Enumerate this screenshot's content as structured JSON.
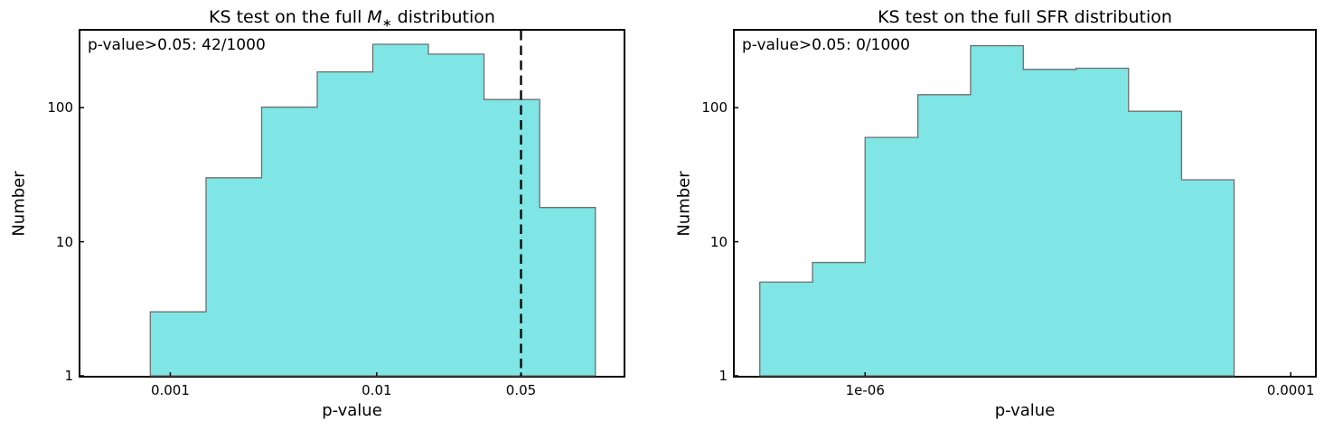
{
  "figure": {
    "background": "#ffffff"
  },
  "colors": {
    "hist_fill": "#7fe5e5",
    "hist_edge": "#6f6f6f",
    "spine": "#000000",
    "dashed_line": "#000000",
    "text": "#000000"
  },
  "chart_data": [
    {
      "type": "bar",
      "subtype": "histogram-stepfilled",
      "title": "KS test on the full M∗ distribution",
      "title_parts": {
        "prefix": "KS test on the full ",
        "var": "M",
        "sub": "∗",
        "suffix": " distribution"
      },
      "annotation": "p-value>0.05: 42/1000",
      "xlabel": "p-value",
      "ylabel": "Number",
      "xscale": "log",
      "yscale": "log",
      "xlim": [
        0.000367,
        0.157
      ],
      "ylim": [
        1,
        375
      ],
      "grid": false,
      "xticks": [
        {
          "v": 0.001,
          "label": "0.001"
        },
        {
          "v": 0.01,
          "label": "0.01"
        },
        {
          "v": 0.05,
          "label": "0.05"
        }
      ],
      "yticks": [
        {
          "v": 1,
          "label": "1"
        },
        {
          "v": 10,
          "label": "10"
        },
        {
          "v": 100,
          "label": "100"
        }
      ],
      "bin_edges": [
        0.0008,
        0.00149,
        0.00277,
        0.00515,
        0.00957,
        0.0178,
        0.0331,
        0.0616,
        0.1146
      ],
      "counts": [
        3,
        30,
        101,
        185,
        297,
        251,
        115,
        18
      ],
      "vline": {
        "x": 0.05,
        "style": "dashed"
      }
    },
    {
      "type": "bar",
      "subtype": "histogram-stepfilled",
      "title": "KS test on the full SFR distribution",
      "title_parts": {
        "prefix": "KS test on the full SFR distribution",
        "var": "",
        "sub": "",
        "suffix": ""
      },
      "annotation": "p-value>0.05: 0/1000",
      "xlabel": "p-value",
      "ylabel": "Number",
      "xscale": "log",
      "yscale": "log",
      "xlim": [
        2.44e-07,
        0.00013
      ],
      "ylim": [
        1,
        375
      ],
      "grid": false,
      "xticks": [
        {
          "v": 1e-06,
          "label": "1e-06"
        },
        {
          "v": 0.0001,
          "label": "0.0001"
        }
      ],
      "yticks": [
        {
          "v": 1,
          "label": "1"
        },
        {
          "v": 10,
          "label": "10"
        },
        {
          "v": 100,
          "label": "100"
        }
      ],
      "bin_edges": [
        3.2e-07,
        5.66e-07,
        1e-06,
        1.77e-06,
        3.13e-06,
        5.54e-06,
        9.8e-06,
        1.73e-05,
        3.07e-05,
        5.42e-05
      ],
      "counts": [
        5,
        7,
        60,
        125,
        290,
        193,
        197,
        94,
        29
      ],
      "vline": null
    }
  ]
}
